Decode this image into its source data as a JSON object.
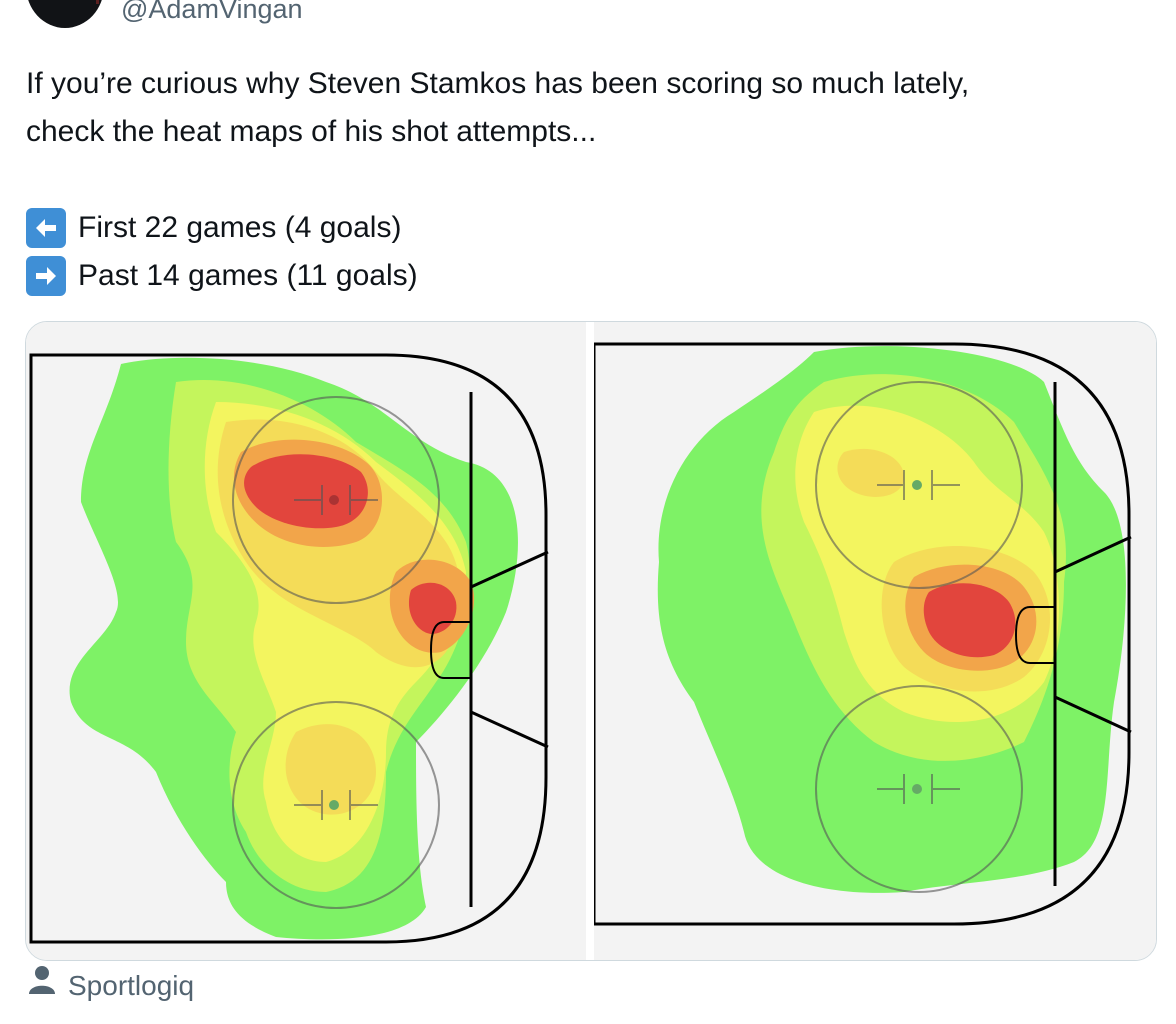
{
  "author": {
    "handle": "@AdamVingan"
  },
  "tweet": {
    "line1": "If you’re curious why Steven Stamkos has been scoring so much lately,",
    "line2": "check the heat maps of his shot attempts...",
    "items": [
      {
        "icon": "left-arrow-icon",
        "text": "First 22 games (4 goals)"
      },
      {
        "icon": "right-arrow-icon",
        "text": "Past 14 games (11 goals)"
      }
    ]
  },
  "media": {
    "panels": [
      {
        "name": "heatmap-first-22-games"
      },
      {
        "name": "heatmap-past-14-games"
      }
    ],
    "colors": {
      "green": "#7ef266",
      "yellow-green": "#c4f55c",
      "yellow": "#f3f55f",
      "gold": "#f4dc58",
      "orange": "#f2a54a",
      "red": "#e2453d",
      "rink-bg": "#f3f3f3"
    }
  },
  "credit": {
    "icon": "person-icon",
    "text": "Sportlogiq"
  }
}
